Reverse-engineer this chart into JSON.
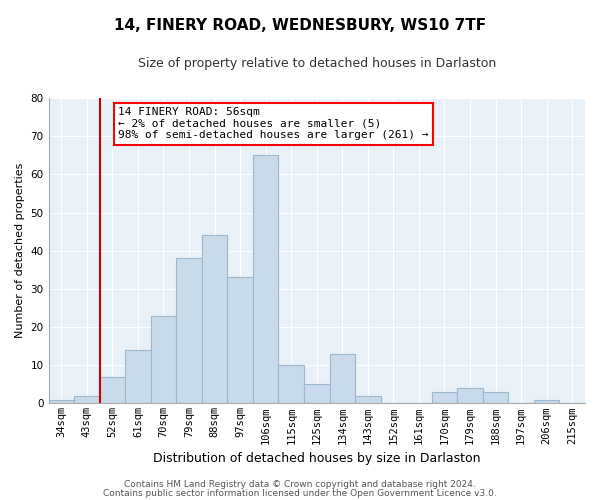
{
  "title": "14, FINERY ROAD, WEDNESBURY, WS10 7TF",
  "subtitle": "Size of property relative to detached houses in Darlaston",
  "xlabel": "Distribution of detached houses by size in Darlaston",
  "ylabel": "Number of detached properties",
  "categories": [
    "34sqm",
    "43sqm",
    "52sqm",
    "61sqm",
    "70sqm",
    "79sqm",
    "88sqm",
    "97sqm",
    "106sqm",
    "115sqm",
    "125sqm",
    "134sqm",
    "143sqm",
    "152sqm",
    "161sqm",
    "170sqm",
    "179sqm",
    "188sqm",
    "197sqm",
    "206sqm",
    "215sqm"
  ],
  "values": [
    1,
    2,
    7,
    14,
    23,
    38,
    44,
    33,
    65,
    10,
    5,
    13,
    2,
    0,
    0,
    3,
    4,
    3,
    0,
    1,
    0
  ],
  "bar_color": "#c9daea",
  "bar_edge_color": "#9ab8d0",
  "highlight_line_color": "#cc0000",
  "ylim": [
    0,
    80
  ],
  "yticks": [
    0,
    10,
    20,
    30,
    40,
    50,
    60,
    70,
    80
  ],
  "annotation_text_line1": "14 FINERY ROAD: 56sqm",
  "annotation_text_line2": "← 2% of detached houses are smaller (5)",
  "annotation_text_line3": "98% of semi-detached houses are larger (261) →",
  "footer_line1": "Contains HM Land Registry data © Crown copyright and database right 2024.",
  "footer_line2": "Contains public sector information licensed under the Open Government Licence v3.0.",
  "bg_color": "#ffffff",
  "plot_bg_color": "#e8f0f8",
  "grid_color": "#ffffff",
  "title_fontsize": 11,
  "subtitle_fontsize": 9,
  "ylabel_fontsize": 8,
  "xlabel_fontsize": 9,
  "tick_fontsize": 7.5,
  "annotation_fontsize": 8,
  "footer_fontsize": 6.5
}
